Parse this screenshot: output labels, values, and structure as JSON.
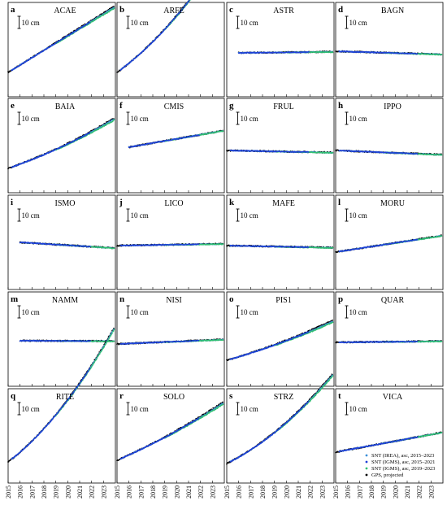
{
  "chart_data": {
    "type": "line",
    "x_ticks": [
      "2015",
      "2016",
      "2017",
      "2018",
      "2019",
      "2020",
      "2021",
      "2022",
      "2023"
    ],
    "xlim": [
      2015,
      2024
    ],
    "scale_bar": "10 cm",
    "series": [
      {
        "name": "SNT (IREA), asc, 2015–2023",
        "color": "#3a8fd8",
        "marker": "circle",
        "period": [
          2015.3,
          2023.9
        ]
      },
      {
        "name": "SNT (IGMS), asc, 2015–2021",
        "color": "#1f3fd8",
        "marker": "circle",
        "period": [
          2015.3,
          2021.9
        ]
      },
      {
        "name": "SNT (IGMS), asc, 2019–2023",
        "color": "#2fbf71",
        "marker": "circle",
        "period": [
          2019.0,
          2023.9
        ]
      },
      {
        "name": "GPS, projected",
        "color": "#000000",
        "marker": "circle",
        "period": [
          2015.0,
          2023.9
        ]
      }
    ],
    "panels": [
      {
        "letter": "a",
        "station": "ACAE",
        "start": 2015.0,
        "y0": 0,
        "slope": 6.0,
        "curve": 0
      },
      {
        "letter": "b",
        "station": "ARFE",
        "start": 2015.0,
        "y0": 0,
        "slope": 7.0,
        "curve": 0.45
      },
      {
        "letter": "c",
        "station": "ASTR",
        "start": 2016.0,
        "y0": 0,
        "slope": 0.1,
        "curve": 0
      },
      {
        "letter": "d",
        "station": "BAGN",
        "start": 2015.0,
        "y0": 0,
        "slope": -0.3,
        "curve": 0
      },
      {
        "letter": "e",
        "station": "BAIA",
        "start": 2015.0,
        "y0": 0,
        "slope": 3.3,
        "curve": 0.14
      },
      {
        "letter": "f",
        "station": "CMIS",
        "start": 2016.0,
        "y0": 0,
        "slope": 1.7,
        "curve": 0
      },
      {
        "letter": "g",
        "station": "FRUL",
        "start": 2015.0,
        "y0": 0,
        "slope": -0.2,
        "curve": 0
      },
      {
        "letter": "h",
        "station": "IPPO",
        "start": 2015.0,
        "y0": 0,
        "slope": -0.4,
        "curve": 0
      },
      {
        "letter": "i",
        "station": "ISMO",
        "start": 2016.0,
        "y0": 0,
        "slope": -0.6,
        "curve": 0
      },
      {
        "letter": "j",
        "station": "LICO",
        "start": 2015.0,
        "y0": 0,
        "slope": 0.15,
        "curve": 0
      },
      {
        "letter": "k",
        "station": "MAFE",
        "start": 2015.0,
        "y0": 0,
        "slope": -0.2,
        "curve": 0
      },
      {
        "letter": "l",
        "station": "MORU",
        "start": 2015.0,
        "y0": 0,
        "slope": 1.5,
        "curve": 0
      },
      {
        "letter": "m",
        "station": "NAMM",
        "start": 2016.0,
        "y0": 0,
        "slope": -0.05,
        "curve": 0
      },
      {
        "letter": "n",
        "station": "NISI",
        "start": 2015.0,
        "y0": 0,
        "slope": 0.4,
        "curve": 0
      },
      {
        "letter": "o",
        "station": "PIS1",
        "start": 2015.0,
        "y0": 0,
        "slope": 2.7,
        "curve": 0.1
      },
      {
        "letter": "p",
        "station": "QUAR",
        "start": 2015.0,
        "y0": 0,
        "slope": 0.1,
        "curve": 0
      },
      {
        "letter": "q",
        "station": "RITE",
        "start": 2015.0,
        "y0": 0,
        "slope": 7.4,
        "curve": 0.55
      },
      {
        "letter": "r",
        "station": "SOLO",
        "start": 2015.0,
        "y0": 0,
        "slope": 4.2,
        "curve": 0.12
      },
      {
        "letter": "s",
        "station": "STRZ",
        "start": 2015.0,
        "y0": 0,
        "slope": 4.8,
        "curve": 0.38
      },
      {
        "letter": "t",
        "station": "VICA",
        "start": 2015.0,
        "y0": 0,
        "slope": 1.8,
        "curve": 0
      }
    ]
  }
}
